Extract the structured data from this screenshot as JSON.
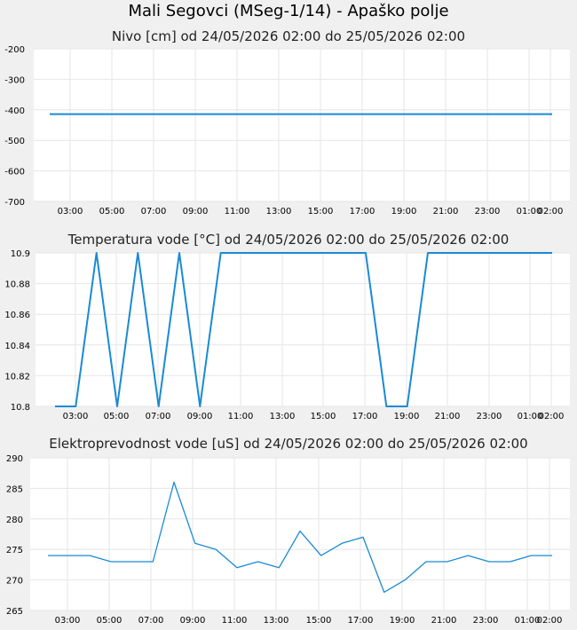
{
  "page": {
    "title": "Mali Segovci (MSeg-1/14) - Apaško polje"
  },
  "colors": {
    "line": "#1a8ad4",
    "background": "#f0f0f0",
    "plot": "#ffffff",
    "grid": "#e6e6e6"
  },
  "chart_data": [
    {
      "type": "line",
      "title": "Nivo [cm] od 24/05/2026 02:00 do 25/05/2026 02:00",
      "x_tick_labels": [
        "03:00",
        "05:00",
        "07:00",
        "09:00",
        "11:00",
        "13:00",
        "15:00",
        "17:00",
        "19:00",
        "21:00",
        "23:00",
        "01:00",
        "02:00"
      ],
      "y_ticks": [
        "-200",
        "-300",
        "-400",
        "-500",
        "-600",
        "-700"
      ],
      "ylim": [
        -700,
        -200
      ],
      "grid": true,
      "x": [
        "02:00",
        "03:00",
        "04:00",
        "05:00",
        "06:00",
        "07:00",
        "08:00",
        "09:00",
        "10:00",
        "11:00",
        "12:00",
        "13:00",
        "14:00",
        "15:00",
        "16:00",
        "17:00",
        "18:00",
        "19:00",
        "20:00",
        "21:00",
        "22:00",
        "23:00",
        "00:00",
        "01:00",
        "02:00"
      ],
      "series": [
        {
          "values": [
            -414,
            -414,
            -414,
            -414,
            -414,
            -414,
            -414,
            -414,
            -414,
            -414,
            -414,
            -414,
            -414,
            -414,
            -414,
            -414,
            -414,
            -414,
            -414,
            -414,
            -414,
            -414,
            -414,
            -414,
            -414
          ]
        }
      ]
    },
    {
      "type": "line",
      "title": "Temperatura vode [°C] od 24/05/2026 02:00 do 25/05/2026 02:00",
      "x_tick_labels": [
        "03:00",
        "05:00",
        "07:00",
        "09:00",
        "11:00",
        "13:00",
        "15:00",
        "17:00",
        "19:00",
        "21:00",
        "23:00",
        "01:00",
        "02:00"
      ],
      "y_ticks": [
        "10.9",
        "10.88",
        "10.86",
        "10.84",
        "10.82",
        "10.8"
      ],
      "ylim": [
        10.8,
        10.9
      ],
      "grid": true,
      "x": [
        "02:00",
        "03:00",
        "04:00",
        "05:00",
        "06:00",
        "07:00",
        "08:00",
        "09:00",
        "10:00",
        "11:00",
        "12:00",
        "13:00",
        "14:00",
        "15:00",
        "16:00",
        "17:00",
        "18:00",
        "19:00",
        "20:00",
        "21:00",
        "22:00",
        "23:00",
        "00:00",
        "01:00",
        "02:00"
      ],
      "series": [
        {
          "values": [
            10.8,
            10.8,
            10.9,
            10.8,
            10.9,
            10.8,
            10.9,
            10.8,
            10.9,
            10.9,
            10.9,
            10.9,
            10.9,
            10.9,
            10.9,
            10.9,
            10.8,
            10.8,
            10.9,
            10.9,
            10.9,
            10.9,
            10.9,
            10.9,
            10.9
          ]
        }
      ]
    },
    {
      "type": "line",
      "title": "Elektroprevodnost vode [uS] od 24/05/2026 02:00 do 25/05/2026 02:00",
      "x_tick_labels": [
        "03:00",
        "05:00",
        "07:00",
        "09:00",
        "11:00",
        "13:00",
        "15:00",
        "17:00",
        "19:00",
        "21:00",
        "23:00",
        "01:00",
        "02:00"
      ],
      "y_ticks": [
        "290",
        "285",
        "280",
        "275",
        "270",
        "265"
      ],
      "ylim": [
        265,
        290
      ],
      "grid": true,
      "x": [
        "02:00",
        "03:00",
        "04:00",
        "05:00",
        "06:00",
        "07:00",
        "08:00",
        "09:00",
        "10:00",
        "11:00",
        "12:00",
        "13:00",
        "14:00",
        "15:00",
        "16:00",
        "17:00",
        "18:00",
        "19:00",
        "20:00",
        "21:00",
        "22:00",
        "23:00",
        "00:00",
        "01:00",
        "02:00"
      ],
      "series": [
        {
          "values": [
            274,
            274,
            274,
            273,
            273,
            273,
            286,
            276,
            275,
            272,
            273,
            272,
            278,
            274,
            276,
            277,
            268,
            270,
            273,
            273,
            274,
            273,
            273,
            274,
            274
          ]
        }
      ]
    }
  ]
}
